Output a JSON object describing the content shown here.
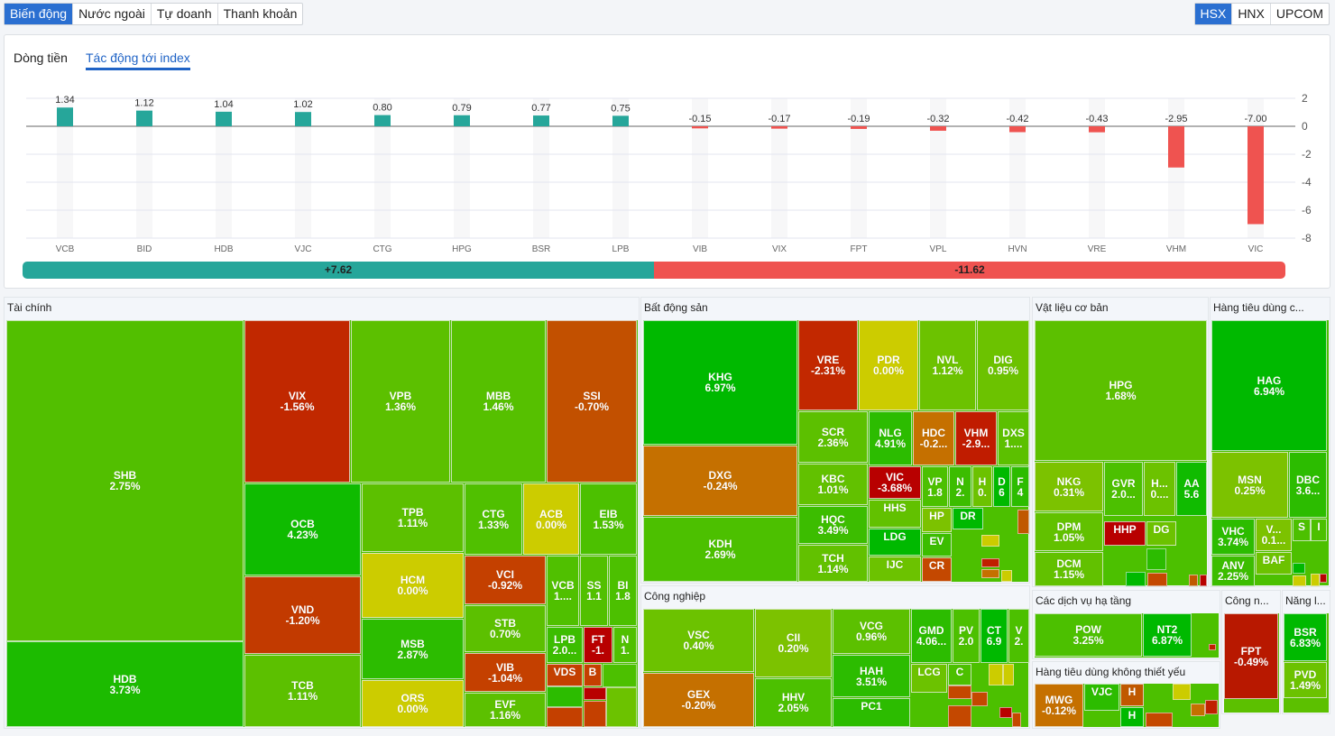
{
  "top_tabs": [
    {
      "label": "Biến động",
      "active": true
    },
    {
      "label": "Nước ngoài"
    },
    {
      "label": "Tự doanh"
    },
    {
      "label": "Thanh khoản"
    }
  ],
  "exchanges": [
    {
      "label": "HSX",
      "active": true
    },
    {
      "label": "HNX"
    },
    {
      "label": "UPCOM"
    }
  ],
  "chart_tabs": [
    {
      "label": "Dòng tiền"
    },
    {
      "label": "Tác động tới index",
      "active": true
    }
  ],
  "chart_data": {
    "type": "bar",
    "categories": [
      "VCB",
      "BID",
      "HDB",
      "VJC",
      "CTG",
      "HPG",
      "BSR",
      "LPB",
      "VIB",
      "VIX",
      "FPT",
      "VPL",
      "HVN",
      "VRE",
      "VHM",
      "VIC"
    ],
    "values": [
      1.34,
      1.12,
      1.04,
      1.02,
      0.8,
      0.79,
      0.77,
      0.75,
      -0.15,
      -0.17,
      -0.19,
      -0.32,
      -0.42,
      -0.43,
      -2.95,
      -7.0
    ],
    "value_labels": [
      "1.34",
      "1.12",
      "1.04",
      "1.02",
      "0.80",
      "0.79",
      "0.77",
      "0.75",
      "-0.15",
      "-0.17",
      "-0.19",
      "-0.32",
      "-0.42",
      "-0.43",
      "-2.95",
      "-7.00"
    ],
    "ylim": [
      -8,
      2
    ],
    "yticks": [
      "2",
      "0",
      "-2",
      "-4",
      "-6",
      "-8"
    ],
    "grid": true,
    "positive_color": "#26a69a",
    "negative_color": "#ef5350"
  },
  "summary": {
    "positive": "+7.62",
    "negative": "-11.62"
  },
  "colors": {
    "up_strong": "#00b900",
    "up": "#5cc000",
    "flat": "#cccc00",
    "down": "#c44000",
    "down_strong": "#b80000"
  },
  "treemap": {
    "sectors": [
      {
        "title": "Tài chính",
        "tiles": [
          {
            "code": "SHB",
            "change": "2.75%",
            "color": "#52bf00"
          },
          {
            "code": "HDB",
            "change": "3.73%",
            "color": "#1cbb00"
          },
          {
            "code": "VIX",
            "change": "-1.56%",
            "color": "#c12800"
          },
          {
            "code": "VPB",
            "change": "1.36%",
            "color": "#5cc000"
          },
          {
            "code": "MBB",
            "change": "1.46%",
            "color": "#56c000"
          },
          {
            "code": "SSI",
            "change": "-0.70%",
            "color": "#c25000"
          },
          {
            "code": "OCB",
            "change": "4.23%",
            "color": "#0fbb00"
          },
          {
            "code": "VND",
            "change": "-1.20%",
            "color": "#c23a00"
          },
          {
            "code": "TCB",
            "change": "1.11%",
            "color": "#5cc000"
          },
          {
            "code": "TPB",
            "change": "1.11%",
            "color": "#5cc000"
          },
          {
            "code": "HCM",
            "change": "0.00%",
            "color": "#cccc00"
          },
          {
            "code": "MSB",
            "change": "2.87%",
            "color": "#2cbc00"
          },
          {
            "code": "ORS",
            "change": "0.00%",
            "color": "#cccc00"
          },
          {
            "code": "CTG",
            "change": "1.33%",
            "color": "#50c000"
          },
          {
            "code": "ACB",
            "change": "0.00%",
            "color": "#cccc00"
          },
          {
            "code": "EIB",
            "change": "1.53%",
            "color": "#4cc000"
          },
          {
            "code": "VCI",
            "change": "-0.92%",
            "color": "#c44000"
          },
          {
            "code": "STB",
            "change": "0.70%",
            "color": "#5cc000"
          },
          {
            "code": "VIB",
            "change": "-1.04%",
            "color": "#c44000"
          },
          {
            "code": "EVF",
            "change": "1.16%",
            "color": "#5cc000"
          },
          {
            "code": "VCB",
            "change": "1....",
            "color": "#50c000"
          },
          {
            "code": "SS",
            "change": "1.1",
            "color": "#52c000"
          },
          {
            "code": "BI",
            "change": "1.8",
            "color": "#4cc000"
          },
          {
            "code": "LPB",
            "change": "2.0...",
            "color": "#3cbd00"
          },
          {
            "code": "FT",
            "change": "-1.",
            "color": "#b80000"
          },
          {
            "code": "N",
            "change": "1.",
            "color": "#50c000"
          },
          {
            "code": "VDS",
            "change": "",
            "color": "#c44000"
          },
          {
            "code": "B",
            "change": "",
            "color": "#c44000"
          }
        ]
      },
      {
        "title": "Bất động sản",
        "tiles": [
          {
            "code": "KHG",
            "change": "6.97%",
            "color": "#00b900"
          },
          {
            "code": "DXG",
            "change": "-0.24%",
            "color": "#c57000"
          },
          {
            "code": "KDH",
            "change": "2.69%",
            "color": "#4cc000"
          },
          {
            "code": "VRE",
            "change": "-2.31%",
            "color": "#c22800"
          },
          {
            "code": "PDR",
            "change": "0.00%",
            "color": "#cccc00"
          },
          {
            "code": "NVL",
            "change": "1.12%",
            "color": "#6cc200"
          },
          {
            "code": "DIG",
            "change": "0.95%",
            "color": "#6cc200"
          },
          {
            "code": "SCR",
            "change": "2.36%",
            "color": "#5cc000"
          },
          {
            "code": "KBC",
            "change": "1.01%",
            "color": "#62c100"
          },
          {
            "code": "HQC",
            "change": "3.49%",
            "color": "#3cbd00"
          },
          {
            "code": "TCH",
            "change": "1.14%",
            "color": "#62c100"
          },
          {
            "code": "NLG",
            "change": "4.91%",
            "color": "#2cbc00"
          },
          {
            "code": "HDC",
            "change": "-0.2...",
            "color": "#c57000"
          },
          {
            "code": "VHM",
            "change": "-2.9...",
            "color": "#c01c00"
          },
          {
            "code": "DXS",
            "change": "1....",
            "color": "#5cc000"
          },
          {
            "code": "VIC",
            "change": "-3.68%",
            "color": "#b80000"
          },
          {
            "code": "HHS",
            "change": "",
            "color": "#62c100"
          },
          {
            "code": "LDG",
            "change": "",
            "color": "#00b900"
          },
          {
            "code": "IJC",
            "change": "",
            "color": "#6cc200"
          },
          {
            "code": "VP",
            "change": "1.8",
            "color": "#4cc000"
          },
          {
            "code": "N",
            "change": "2.",
            "color": "#3cbd00"
          },
          {
            "code": "H",
            "change": "0.",
            "color": "#6cc200"
          },
          {
            "code": "D",
            "change": "6",
            "color": "#00b900"
          },
          {
            "code": "F",
            "change": "4",
            "color": "#2cbc00"
          },
          {
            "code": "HP",
            "change": "",
            "color": "#7cc200"
          },
          {
            "code": "EV",
            "change": "",
            "color": "#3cbd00"
          },
          {
            "code": "CR",
            "change": "",
            "color": "#c44800"
          },
          {
            "code": "DR",
            "change": "",
            "color": "#00b900"
          }
        ]
      },
      {
        "title": "Công nghiệp",
        "tiles": [
          {
            "code": "VSC",
            "change": "0.40%",
            "color": "#6cc200"
          },
          {
            "code": "GEX",
            "change": "-0.20%",
            "color": "#c57000"
          },
          {
            "code": "CII",
            "change": "0.20%",
            "color": "#7cc200"
          },
          {
            "code": "HHV",
            "change": "2.05%",
            "color": "#4cc000"
          },
          {
            "code": "VCG",
            "change": "0.96%",
            "color": "#5cc000"
          },
          {
            "code": "HAH",
            "change": "3.51%",
            "color": "#2cbc00"
          },
          {
            "code": "PC1",
            "change": "",
            "color": "#2cbc00"
          },
          {
            "code": "GMD",
            "change": "4.06...",
            "color": "#2cbc00"
          },
          {
            "code": "PV",
            "change": "2.0",
            "color": "#4cc000"
          },
          {
            "code": "CT",
            "change": "6.9",
            "color": "#00b900"
          },
          {
            "code": "V",
            "change": "2.",
            "color": "#4cc000"
          },
          {
            "code": "LCG",
            "change": "",
            "color": "#6cc200"
          },
          {
            "code": "C",
            "change": "",
            "color": "#4cc000"
          }
        ]
      },
      {
        "title": "Vật liệu cơ bản",
        "tiles": [
          {
            "code": "HPG",
            "change": "1.68%",
            "color": "#5cc000"
          },
          {
            "code": "NKG",
            "change": "0.31%",
            "color": "#7cc200"
          },
          {
            "code": "DPM",
            "change": "1.05%",
            "color": "#62c100"
          },
          {
            "code": "DCM",
            "change": "1.15%",
            "color": "#62c100"
          },
          {
            "code": "GVR",
            "change": "2.0...",
            "color": "#4cc000"
          },
          {
            "code": "H...",
            "change": "0....",
            "color": "#6cc200"
          },
          {
            "code": "AA",
            "change": "5.6",
            "color": "#10bb00"
          },
          {
            "code": "HHP",
            "change": "",
            "color": "#b80000"
          },
          {
            "code": "DG",
            "change": "",
            "color": "#6cc200"
          }
        ]
      },
      {
        "title": "Hàng tiêu dùng c...",
        "tiles": [
          {
            "code": "HAG",
            "change": "6.94%",
            "color": "#00b900"
          },
          {
            "code": "MSN",
            "change": "0.25%",
            "color": "#7cc200"
          },
          {
            "code": "DBC",
            "change": "3.6...",
            "color": "#2cbc00"
          },
          {
            "code": "VHC",
            "change": "3.74%",
            "color": "#2cbc00"
          },
          {
            "code": "ANV",
            "change": "2.25%",
            "color": "#3cbd00"
          },
          {
            "code": "V...",
            "change": "0.1...",
            "color": "#7cc200"
          },
          {
            "code": "BAF",
            "change": "",
            "color": "#6cc200"
          },
          {
            "code": "S",
            "change": "",
            "color": "#4cc000"
          },
          {
            "code": "I",
            "change": "",
            "color": "#4cc000"
          }
        ]
      },
      {
        "title": "Các dịch vụ hạ tầng",
        "tiles": [
          {
            "code": "POW",
            "change": "3.25%",
            "color": "#4cc000"
          },
          {
            "code": "NT2",
            "change": "6.87%",
            "color": "#00b900"
          }
        ]
      },
      {
        "title": "Hàng tiêu dùng không thiết yếu",
        "tiles": [
          {
            "code": "MWG",
            "change": "-0.12%",
            "color": "#c57000"
          },
          {
            "code": "VJC",
            "change": "",
            "color": "#2cbc00"
          },
          {
            "code": "H",
            "change": "",
            "color": "#c05800"
          },
          {
            "code": "H",
            "change": "",
            "color": "#00b900"
          }
        ]
      },
      {
        "title": "Công n...",
        "tiles": [
          {
            "code": "FPT",
            "change": "-0.49%",
            "color": "#b81800"
          }
        ]
      },
      {
        "title": "Năng l...",
        "tiles": [
          {
            "code": "BSR",
            "change": "6.83%",
            "color": "#00b900"
          },
          {
            "code": "PVD",
            "change": "1.49%",
            "color": "#6cc200"
          }
        ]
      }
    ]
  }
}
